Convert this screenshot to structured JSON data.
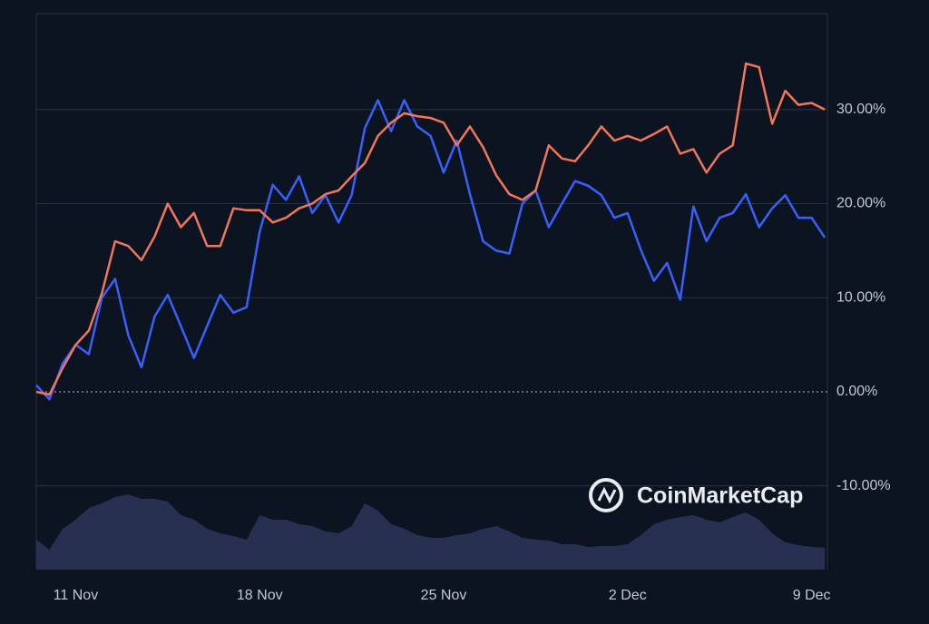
{
  "chart_data": {
    "type": "line",
    "watermark": "CoinMarketCap",
    "x": [
      9.5,
      10,
      10.5,
      11,
      11.5,
      12,
      12.5,
      13,
      13.5,
      14,
      14.5,
      15,
      15.5,
      16,
      16.5,
      17,
      17.5,
      18,
      18.5,
      19,
      19.5,
      20,
      20.5,
      21,
      21.5,
      22,
      22.5,
      23,
      23.5,
      24,
      24.5,
      25,
      25.5,
      26,
      26.5,
      27,
      27.5,
      28,
      28.5,
      29,
      29.5,
      30,
      30.5,
      31,
      31.5,
      32,
      32.5,
      33,
      33.5,
      34,
      34.5,
      35,
      35.5,
      36,
      36.5,
      37,
      37.5,
      38,
      38.5,
      39,
      39.5
    ],
    "series": [
      {
        "color": "#f2765a",
        "values": [
          0,
          -0.3,
          2.5,
          5,
          6.5,
          10.5,
          16,
          15.5,
          14,
          16.5,
          20,
          17.5,
          19,
          15.5,
          15.5,
          19.5,
          19.3,
          19.3,
          18,
          18.5,
          19.5,
          20,
          21,
          21.4,
          22.9,
          24.3,
          27.2,
          28.6,
          29.6,
          29.3,
          29.1,
          28.6,
          26.2,
          28.2,
          26,
          23,
          21,
          20.4,
          21.4,
          26.2,
          24.8,
          24.5,
          26.2,
          28.2,
          26.7,
          27.2,
          26.7,
          27.4,
          28.2,
          25.3,
          25.8,
          23.3,
          25.3,
          26.2,
          34.9,
          34.5,
          28.5,
          32,
          30.5,
          30.7,
          30
        ]
      },
      {
        "color": "#3861fb",
        "values": [
          0.7,
          -0.8,
          3,
          5,
          4,
          10,
          12,
          6,
          2.6,
          8,
          10.3,
          7,
          3.6,
          7,
          10.3,
          8.4,
          9,
          17,
          22,
          20.4,
          22.9,
          19,
          20.9,
          18,
          20.9,
          28,
          31,
          27.7,
          31,
          28.2,
          27.2,
          23.3,
          26.7,
          21,
          16,
          15,
          14.7,
          20,
          21.4,
          17.5,
          20,
          22.4,
          21.9,
          20.9,
          18.5,
          19,
          15.1,
          11.8,
          13.7,
          9.8,
          19.7,
          16,
          18.5,
          19,
          21,
          17.5,
          19.5,
          20.9,
          18.5,
          18.5,
          16.4
        ]
      }
    ],
    "volume": {
      "color": "#2a3356",
      "ylim": [
        0,
        100
      ],
      "values": [
        33,
        22,
        45,
        55,
        68,
        73,
        80,
        83,
        78,
        78,
        75,
        60,
        55,
        45,
        40,
        37,
        33,
        60,
        55,
        55,
        50,
        48,
        42,
        40,
        48,
        73,
        65,
        50,
        45,
        38,
        35,
        35,
        38,
        40,
        45,
        48,
        42,
        35,
        33,
        32,
        28,
        28,
        25,
        26,
        26,
        28,
        38,
        50,
        55,
        58,
        60,
        55,
        52,
        58,
        63,
        55,
        40,
        30,
        27,
        25,
        24
      ]
    },
    "xlim": [
      9.5,
      39.6
    ],
    "xticks": [
      {
        "value": 11,
        "label": "11 Nov"
      },
      {
        "value": 18,
        "label": "18 Nov"
      },
      {
        "value": 25,
        "label": "25 Nov"
      },
      {
        "value": 32,
        "label": "2 Dec"
      },
      {
        "value": 39,
        "label": "9 Dec"
      }
    ],
    "ylim": [
      -18.9,
      40.2
    ],
    "yticks": [
      {
        "value": -10,
        "label": "-10.00%"
      },
      {
        "value": 0,
        "label": "0.00%"
      },
      {
        "value": 10,
        "label": "10.00%"
      },
      {
        "value": 20,
        "label": "20.00%"
      },
      {
        "value": 30,
        "label": "30.00%"
      }
    ],
    "grid": true
  }
}
